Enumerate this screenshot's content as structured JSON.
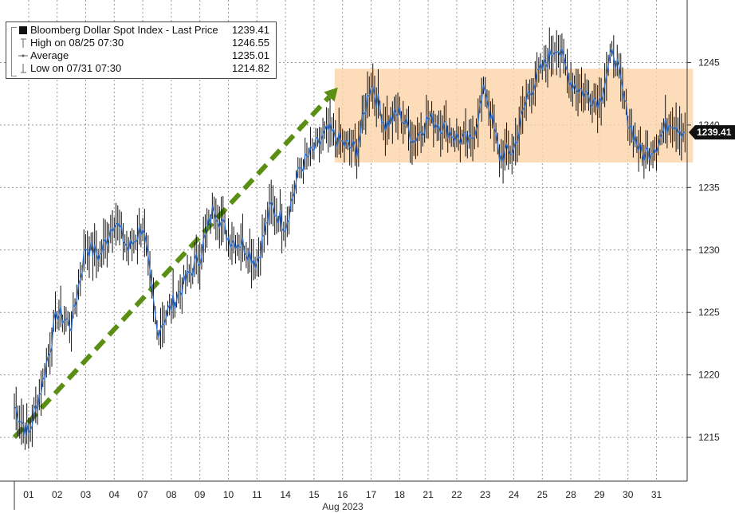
{
  "legend": {
    "series_name": "Bloomberg Dollar Spot Index - Last Price",
    "last_value": "1239.41",
    "high_label": "High on 08/25 07:30",
    "high_value": "1246.55",
    "average_label": "Average",
    "average_value": "1235.01",
    "low_label": "Low on 07/31 07:30",
    "low_value": "1214.82"
  },
  "last_price_tag": "1239.41",
  "colors": {
    "line": "#2f6fd0",
    "candle": "#111111",
    "range_box": "#fcd3a8",
    "trend_arrow": "#5b8f13",
    "grid": "#9a9a9a"
  },
  "chart_data": {
    "type": "line",
    "title": "Bloomberg Dollar Spot Index - Last Price",
    "xlabel": "Aug 2023",
    "ylabel": "",
    "ylim": [
      1211.5,
      1250
    ],
    "y_ticks": [
      1215,
      1220,
      1225,
      1230,
      1235,
      1240,
      1245
    ],
    "x_tick_labels": [
      "01",
      "02",
      "03",
      "04",
      "07",
      "08",
      "09",
      "10",
      "11",
      "14",
      "15",
      "16",
      "17",
      "18",
      "21",
      "22",
      "23",
      "24",
      "25",
      "28",
      "29",
      "30",
      "31"
    ],
    "grid": true,
    "legend_position": "top-left",
    "stats": {
      "last": 1239.41,
      "high": 1246.55,
      "average": 1235.01,
      "low": 1214.82
    },
    "series": [
      {
        "name": "Bloomberg Dollar Spot Index - Last Price",
        "x": [
          "07/31",
          "07/31 mid",
          "08/01",
          "08/01 mid",
          "08/02",
          "08/02 mid",
          "08/03",
          "08/03 mid",
          "08/04",
          "08/04 mid",
          "08/07",
          "08/07 mid",
          "08/08",
          "08/08 mid",
          "08/09",
          "08/09 mid",
          "08/10",
          "08/10 mid",
          "08/11",
          "08/11 mid",
          "08/14",
          "08/14 mid",
          "08/15",
          "08/15 mid",
          "08/16",
          "08/16 mid",
          "08/17",
          "08/17 mid",
          "08/18",
          "08/18 mid",
          "08/21",
          "08/21 mid",
          "08/22",
          "08/22 mid",
          "08/23",
          "08/23 mid",
          "08/24",
          "08/24 mid",
          "08/25",
          "08/25 mid",
          "08/28",
          "08/28 mid",
          "08/29",
          "08/29 mid",
          "08/30",
          "08/30 mid",
          "08/31",
          "08/31 mid"
        ],
        "values": [
          1217.5,
          1215.2,
          1219.5,
          1225.0,
          1224.0,
          1230.3,
          1229.5,
          1232.5,
          1230.0,
          1232.0,
          1223.5,
          1225.5,
          1227.5,
          1229.5,
          1233.5,
          1231.0,
          1230.5,
          1229.0,
          1233.5,
          1232.0,
          1236.5,
          1238.0,
          1239.5,
          1238.5,
          1238.0,
          1243.5,
          1240.0,
          1241.0,
          1238.8,
          1240.5,
          1240.0,
          1239.0,
          1238.5,
          1243.0,
          1237.5,
          1238.0,
          1242.5,
          1244.5,
          1246.5,
          1243.5,
          1242.5,
          1242.0,
          1246.0,
          1240.5,
          1237.5,
          1238.5,
          1240.5,
          1239.4
        ]
      }
    ],
    "annotations": [
      {
        "type": "arrow",
        "from": {
          "x": "07/31",
          "y": 1215
        },
        "to": {
          "x": "08/15",
          "y": 1243
        }
      },
      {
        "type": "box",
        "x_from": "08/15",
        "x_to": "08/31",
        "y_from": 1237,
        "y_to": 1244.5
      }
    ]
  }
}
